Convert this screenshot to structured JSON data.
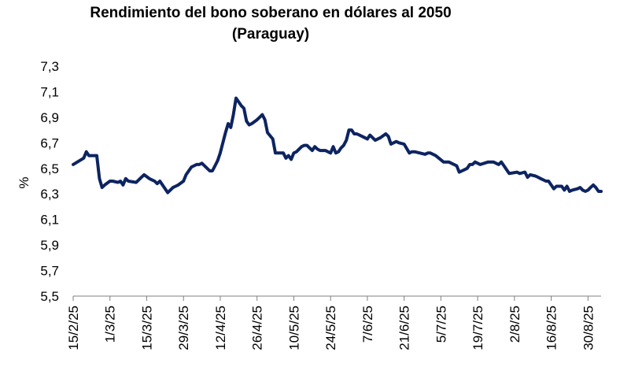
{
  "chart_data": {
    "type": "line",
    "title_line1": "Rendimiento del bono soberano en dólares al 2050",
    "title_line2": "(Paraguay)",
    "ylabel": "%",
    "xlabel": "",
    "ylim": [
      5.5,
      7.3
    ],
    "y_ticks": [
      "7,3",
      "7,1",
      "6,9",
      "6,7",
      "6,5",
      "6,3",
      "6,1",
      "5,9",
      "5,7",
      "5,5"
    ],
    "y_tick_values": [
      7.3,
      7.1,
      6.9,
      6.7,
      6.5,
      6.3,
      6.1,
      5.9,
      5.7,
      5.5
    ],
    "x_tick_labels": [
      "15/2/25",
      "1/3/25",
      "15/3/25",
      "29/3/25",
      "12/4/25",
      "26/4/25",
      "10/5/25",
      "24/5/25",
      "7/6/25",
      "21/6/25",
      "5/7/25",
      "19/7/25",
      "2/8/25",
      "16/8/25",
      "30/8/25"
    ],
    "x_tick_days": [
      0,
      14,
      28,
      42,
      56,
      70,
      84,
      98,
      112,
      126,
      140,
      154,
      168,
      182,
      196
    ],
    "grid": false,
    "line_color": "#0d2461",
    "series": [
      {
        "x": [
          0,
          4,
          5,
          6,
          7,
          9,
          10,
          11,
          12,
          14,
          15,
          17,
          18,
          19,
          20,
          21,
          24,
          26,
          27,
          29,
          30,
          31,
          32,
          33,
          36,
          38,
          39,
          40,
          42,
          43,
          45,
          46,
          47,
          48,
          49,
          52,
          53,
          54,
          55,
          56,
          58,
          59,
          60,
          61,
          62,
          64,
          65,
          66,
          67,
          68,
          70,
          71,
          72,
          73,
          74,
          76,
          77,
          78,
          79,
          80,
          81,
          82,
          83,
          84,
          85,
          86,
          87,
          88,
          89,
          91,
          92,
          93,
          94,
          95,
          96,
          97,
          98,
          99,
          100,
          101,
          102,
          103,
          104,
          105,
          106,
          107,
          108,
          109,
          110,
          111,
          112,
          113,
          115,
          117,
          119,
          120,
          121,
          123,
          124,
          126,
          128,
          129,
          130,
          132,
          134,
          135,
          136,
          138,
          141,
          142,
          143,
          144,
          145,
          146,
          147,
          148,
          149,
          150,
          151,
          152,
          153,
          155,
          158,
          159,
          160,
          162,
          163,
          164,
          165,
          166,
          169,
          170,
          172,
          173,
          174,
          176,
          177,
          178,
          180,
          181,
          183,
          184,
          185,
          186,
          187,
          188,
          189,
          190,
          192,
          193,
          194,
          195,
          196,
          197,
          198,
          199,
          200,
          201
        ],
        "values": [
          6.53,
          6.58,
          6.63,
          6.6,
          6.6,
          6.6,
          6.42,
          6.35,
          6.37,
          6.4,
          6.4,
          6.39,
          6.4,
          6.37,
          6.42,
          6.4,
          6.39,
          6.43,
          6.45,
          6.42,
          6.41,
          6.4,
          6.38,
          6.4,
          6.31,
          6.35,
          6.36,
          6.37,
          6.4,
          6.45,
          6.51,
          6.52,
          6.53,
          6.53,
          6.54,
          6.48,
          6.48,
          6.52,
          6.56,
          6.62,
          6.78,
          6.85,
          6.82,
          6.92,
          7.05,
          6.99,
          6.97,
          6.87,
          6.84,
          6.85,
          6.88,
          6.9,
          6.92,
          6.88,
          6.78,
          6.73,
          6.62,
          6.62,
          6.62,
          6.62,
          6.58,
          6.6,
          6.57,
          6.62,
          6.63,
          6.65,
          6.67,
          6.68,
          6.68,
          6.64,
          6.67,
          6.65,
          6.64,
          6.64,
          6.64,
          6.63,
          6.62,
          6.67,
          6.62,
          6.63,
          6.66,
          6.68,
          6.72,
          6.8,
          6.8,
          6.77,
          6.77,
          6.76,
          6.75,
          6.74,
          6.73,
          6.76,
          6.72,
          6.74,
          6.77,
          6.75,
          6.69,
          6.71,
          6.7,
          6.69,
          6.62,
          6.63,
          6.63,
          6.62,
          6.61,
          6.62,
          6.62,
          6.6,
          6.55,
          6.55,
          6.55,
          6.54,
          6.53,
          6.52,
          6.47,
          6.48,
          6.49,
          6.5,
          6.53,
          6.53,
          6.55,
          6.53,
          6.55,
          6.55,
          6.55,
          6.53,
          6.55,
          6.52,
          6.49,
          6.46,
          6.47,
          6.46,
          6.47,
          6.43,
          6.45,
          6.44,
          6.43,
          6.42,
          6.4,
          6.4,
          6.34,
          6.36,
          6.36,
          6.36,
          6.33,
          6.36,
          6.32,
          6.33,
          6.34,
          6.35,
          6.33,
          6.32,
          6.33,
          6.35,
          6.37,
          6.35,
          6.32,
          6.32
        ]
      }
    ]
  }
}
